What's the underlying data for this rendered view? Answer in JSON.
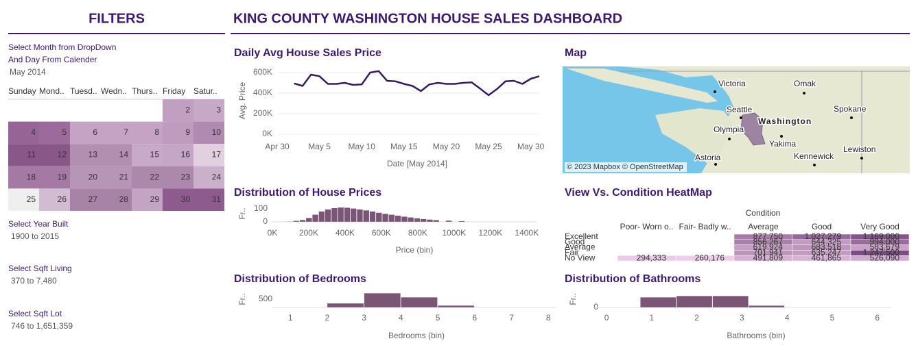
{
  "header": {
    "title": "KING COUNTY WASHINGTON HOUSE SALES DASHBOARD"
  },
  "filters": {
    "title": "FILTERS",
    "month_label": [
      "Select Month from DropDown",
      "And Day From Calender"
    ],
    "month": "May 2014",
    "weekdays": [
      "Sunday",
      "Mond..",
      "Tuesd..",
      "Wedn..",
      "Thurs..",
      "Friday",
      "Satur.."
    ],
    "days": [
      [
        null,
        null,
        null,
        null,
        null,
        2,
        3
      ],
      [
        4,
        5,
        6,
        7,
        8,
        9,
        10
      ],
      [
        11,
        12,
        13,
        14,
        15,
        16,
        17
      ],
      [
        18,
        19,
        20,
        21,
        22,
        23,
        24
      ],
      [
        25,
        26,
        27,
        28,
        29,
        30,
        31
      ]
    ],
    "day_colors": [
      [
        null,
        null,
        null,
        null,
        null,
        "#c29ec2",
        "#c7a9c7"
      ],
      [
        "#966596",
        "#9c6b9c",
        "#c4a3c4",
        "#c4a3c4",
        "#c4a3c4",
        "#bf9cbf",
        "#b08ab0"
      ],
      [
        "#8a5789",
        "#8a5789",
        "#b38eb3",
        "#b38eb3",
        "#c9a9c9",
        "#c6a6c6",
        "#e0d0e0"
      ],
      [
        "#a47aa4",
        "#a47aa4",
        "#b795b7",
        "#b795b7",
        "#ad88ad",
        "#ad88ad",
        "#cbb0cb"
      ],
      [
        "#efefef",
        "#d1bcd1",
        "#a883a8",
        "#a883a8",
        "#c3a4c3",
        "#8d5b8d",
        "#8d5b8d"
      ]
    ],
    "ranges": [
      {
        "label": "Select Year Built",
        "value": "1900 to 2015"
      },
      {
        "label": "Select Sqft Living",
        "value": "370 to 7,480"
      },
      {
        "label": "Select Sqft Lot",
        "value": "746 to 1,651,359"
      }
    ]
  },
  "map": {
    "title": "Map",
    "places": [
      "Victoria",
      "Omak",
      "Seattle",
      "Washington",
      "Spokane",
      "Olympia",
      "Yakima",
      "Lewiston",
      "Kennewick",
      "Astoria"
    ],
    "attribution": "© 2023 Mapbox © OpenStreetMap"
  },
  "chart_data": [
    {
      "type": "line",
      "title": "Daily  Avg House Sales Price",
      "y_label": "Avg. Price",
      "x_label": "Date [May 2014]",
      "color": "#3a1a5e",
      "grid": true,
      "x": [
        "May 2",
        "May 3",
        "May 4",
        "May 5",
        "May 6",
        "May 7",
        "May 8",
        "May 9",
        "May 10",
        "May 11",
        "May 12",
        "May 13",
        "May 14",
        "May 15",
        "May 16",
        "May 17",
        "May 18",
        "May 19",
        "May 20",
        "May 21",
        "May 22",
        "May 23",
        "May 24",
        "May 25",
        "May 26",
        "May 27",
        "May 28",
        "May 29",
        "May 30",
        "May 31"
      ],
      "values": [
        495000,
        470000,
        580000,
        565000,
        490000,
        490000,
        500000,
        480000,
        485000,
        600000,
        615000,
        520000,
        515000,
        490000,
        470000,
        420000,
        485000,
        500000,
        490000,
        490000,
        500000,
        505000,
        445000,
        380000,
        440000,
        515000,
        520000,
        490000,
        540000,
        565000
      ],
      "xlim": [
        "Apr 30",
        "May 31"
      ],
      "xticks": [
        "Apr 30",
        "May 5",
        "May 10",
        "May 15",
        "May 20",
        "May 25",
        "May 30"
      ],
      "ylim": [
        0,
        650000
      ],
      "yticks": [
        {
          "value": 0,
          "label": "0K"
        },
        {
          "value": 200000,
          "label": "200K"
        },
        {
          "value": 400000,
          "label": "400K"
        },
        {
          "value": 600000,
          "label": "600K"
        }
      ]
    },
    {
      "type": "histogram",
      "title": "Distribution of House Prices",
      "y_label": "Fr..",
      "x_label": "Price (bin)",
      "color": "#7a5575",
      "bins": [
        80000,
        115000,
        150000,
        185000,
        220000,
        255000,
        290000,
        325000,
        360000,
        395000,
        430000,
        465000,
        500000,
        535000,
        570000,
        605000,
        640000,
        675000,
        710000,
        745000,
        780000,
        815000,
        850000,
        885000,
        920000,
        955000,
        990000,
        1025000,
        1060000
      ],
      "values": [
        3,
        8,
        15,
        30,
        55,
        80,
        95,
        105,
        110,
        108,
        102,
        95,
        88,
        80,
        70,
        62,
        55,
        48,
        40,
        34,
        28,
        22,
        18,
        14,
        0,
        10,
        0,
        6
      ],
      "xlim": [
        0,
        1450000
      ],
      "xticks": [
        {
          "value": 0,
          "label": "0K"
        },
        {
          "value": 200000,
          "label": "200K"
        },
        {
          "value": 400000,
          "label": "400K"
        },
        {
          "value": 600000,
          "label": "600K"
        },
        {
          "value": 800000,
          "label": "800K"
        },
        {
          "value": 1000000,
          "label": "1000K"
        },
        {
          "value": 1200000,
          "label": "1200K"
        },
        {
          "value": 1400000,
          "label": "1400K"
        }
      ],
      "ylim": [
        0,
        120
      ],
      "yticks": [
        0,
        100
      ]
    },
    {
      "type": "heatmap",
      "title": "View Vs. Condition HeatMap",
      "x_title": "Condition",
      "columns": [
        "Poor- Worn o..",
        "Fair- Badly w..",
        "Average",
        "Good",
        "Very Good"
      ],
      "rows": [
        "Excellent",
        "Good",
        "Average",
        "Fair",
        "No View"
      ],
      "values": [
        [
          null,
          null,
          877750,
          1027279,
          1169000
        ],
        [
          null,
          null,
          856267,
          644325,
          994000
        ],
        [
          null,
          null,
          619924,
          683518,
          583679
        ],
        [
          null,
          null,
          701941,
          635247,
          1247500
        ],
        [
          294333,
          260176,
          491809,
          461865,
          526090
        ]
      ],
      "value_labels": [
        [
          null,
          null,
          "877,750",
          "1,027,279",
          "1,169,000"
        ],
        [
          null,
          null,
          "856,267",
          "644,325",
          "994,000"
        ],
        [
          null,
          null,
          "619,924",
          "683,518",
          "583,679"
        ],
        [
          null,
          null,
          "701,941",
          "635,247",
          "1,247,500"
        ],
        [
          "294,333",
          "260,176",
          "491,809",
          "461,865",
          "526,090"
        ]
      ],
      "color_range": [
        "#f0cdea",
        "#7b4b82"
      ]
    },
    {
      "type": "histogram",
      "title": "Distribution of Bedrooms",
      "y_label": "Fr..",
      "x_label": "Bedrooms (bin)",
      "color": "#7a5575",
      "bins": [
        2,
        3,
        4,
        5,
        6
      ],
      "values": [
        250,
        870,
        620,
        120
      ],
      "xlim": [
        0.5,
        8.2
      ],
      "xticks": [
        1,
        2,
        3,
        4,
        5,
        6,
        7,
        8
      ],
      "ylim": [
        0,
        900
      ],
      "yticks": [
        500
      ]
    },
    {
      "type": "histogram",
      "title": "Distribution of Bathrooms",
      "y_label": "Fr..",
      "x_label": "Bathrooms (bin)",
      "color": "#7a5575",
      "bins": [
        0.75,
        1.55,
        2.35,
        3.15,
        3.95
      ],
      "values": [
        3800,
        4300,
        4300,
        700
      ],
      "xlim": [
        -0.3,
        6.3
      ],
      "xticks": [
        0,
        1,
        2,
        3,
        4,
        5,
        6
      ],
      "ylim": [
        0,
        4600
      ],
      "yticks": [
        0
      ]
    }
  ]
}
